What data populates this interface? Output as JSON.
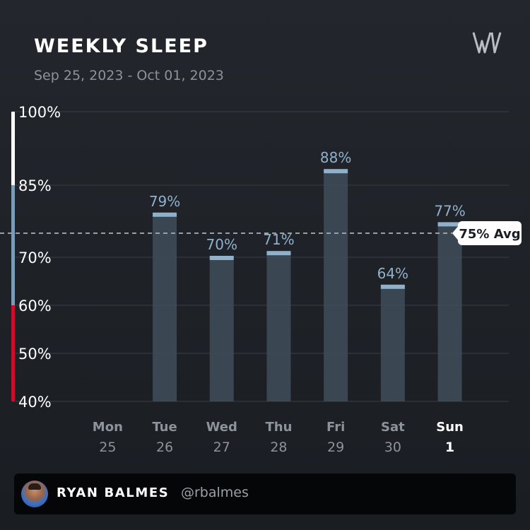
{
  "header": {
    "title": "WEEKLY SLEEP",
    "date_range": "Sep 25, 2023 - Oct 01, 2023",
    "logo_icon": "whoop-logo-icon"
  },
  "chart_data": {
    "type": "bar",
    "title": "WEEKLY SLEEP",
    "subtitle": "Sep 25, 2023 - Oct 01, 2023",
    "y_unit": "%",
    "ylim": [
      40,
      100
    ],
    "y_ticks": [
      {
        "value": 100,
        "label": "100%"
      },
      {
        "value": 85,
        "label": "85%"
      },
      {
        "value": 70,
        "label": "70%"
      },
      {
        "value": 60,
        "label": "60%"
      },
      {
        "value": 50,
        "label": "50%"
      },
      {
        "value": 40,
        "label": "40%"
      }
    ],
    "bands": [
      {
        "from": 85,
        "to": 100,
        "color": "#ffffff"
      },
      {
        "from": 60,
        "to": 85,
        "color": "#7b9bb6"
      },
      {
        "from": 40,
        "to": 60,
        "color": "#c8102e"
      }
    ],
    "days": [
      {
        "day": "Mon",
        "date": "25",
        "value": null,
        "label": "",
        "current": false
      },
      {
        "day": "Tue",
        "date": "26",
        "value": 79,
        "label": "79%",
        "current": false
      },
      {
        "day": "Wed",
        "date": "27",
        "value": 70,
        "label": "70%",
        "current": false
      },
      {
        "day": "Thu",
        "date": "28",
        "value": 71,
        "label": "71%",
        "current": false
      },
      {
        "day": "Fri",
        "date": "29",
        "value": 88,
        "label": "88%",
        "current": false
      },
      {
        "day": "Sat",
        "date": "30",
        "value": 64,
        "label": "64%",
        "current": false
      },
      {
        "day": "Sun",
        "date": "1",
        "value": 77,
        "label": "77%",
        "current": true
      }
    ],
    "average": {
      "value": 75,
      "label": "75% Avg"
    },
    "grid": true,
    "colors": {
      "bar_fill": "#3f4d5a",
      "bar_cap": "#8fb1cc",
      "value_label": "#8fb1cc",
      "day_label": "#8d939b",
      "current_day_label": "#ffffff",
      "grid": "#3a3e44",
      "avg_line": "#9aa0a6"
    }
  },
  "footer": {
    "avatar_icon": "user-avatar-icon",
    "name": "RYAN BALMES",
    "handle": "@rbalmes"
  }
}
